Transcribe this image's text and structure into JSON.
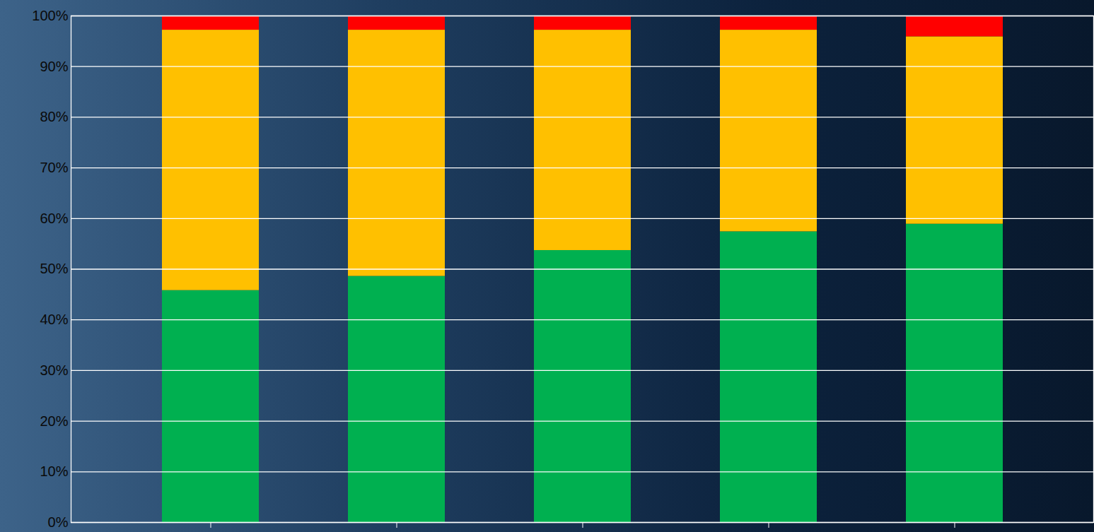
{
  "chart_data": {
    "type": "bar",
    "stacked": true,
    "grid": true,
    "categories": [
      null,
      null,
      null,
      null,
      null
    ],
    "series": [
      {
        "color": "#00b050",
        "values": [
          45.8,
          48.6,
          53.7,
          57.4,
          58.9
        ]
      },
      {
        "color": "#ffc000",
        "values": [
          51.4,
          48.6,
          43.5,
          39.8,
          37.0
        ]
      },
      {
        "color": "#ff0000",
        "values": [
          2.8,
          2.8,
          2.8,
          2.8,
          4.1
        ]
      }
    ],
    "ylim": [
      0,
      100
    ],
    "yticks": [
      {
        "value": 0,
        "label": "0%"
      },
      {
        "value": 10,
        "label": "10%"
      },
      {
        "value": 20,
        "label": "20%"
      },
      {
        "value": 30,
        "label": "30%"
      },
      {
        "value": 40,
        "label": "40%"
      },
      {
        "value": 50,
        "label": "50%"
      },
      {
        "value": 60,
        "label": "60%"
      },
      {
        "value": 70,
        "label": "70%"
      },
      {
        "value": 80,
        "label": "80%"
      },
      {
        "value": 90,
        "label": "90%"
      },
      {
        "value": 100,
        "label": "100%"
      }
    ]
  }
}
